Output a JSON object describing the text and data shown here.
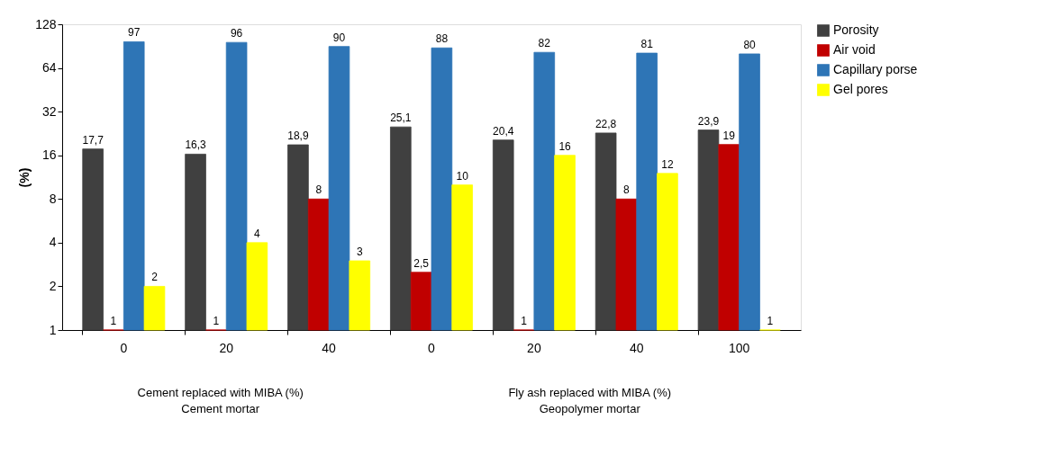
{
  "chart_data": {
    "type": "bar",
    "ylabel": "(%)",
    "categories": [
      "0",
      "20",
      "40",
      "0",
      "20",
      "40",
      "100"
    ],
    "series": [
      {
        "name": "Porosity",
        "color": "#404040",
        "values": [
          17.7,
          16.3,
          18.9,
          25.1,
          20.4,
          22.8,
          23.9
        ],
        "value_labels": [
          "17,7",
          "16,3",
          "18,9",
          "25,1",
          "20,4",
          "22,8",
          "23,9"
        ]
      },
      {
        "name": "Air void",
        "color": "#c00000",
        "values": [
          1,
          1,
          8,
          2.5,
          1,
          8,
          19
        ],
        "value_labels": [
          "1",
          "1",
          "8",
          "2,5",
          "1",
          "8",
          "19"
        ]
      },
      {
        "name": "Capillary porse",
        "color": "#2e75b6",
        "values": [
          97,
          96,
          90,
          88,
          82,
          81,
          80
        ],
        "value_labels": [
          "97",
          "96",
          "90",
          "88",
          "82",
          "81",
          "80"
        ]
      },
      {
        "name": "Gel pores",
        "color": "#ffff00",
        "values": [
          2,
          4,
          3,
          10,
          16,
          12,
          1
        ],
        "value_labels": [
          "2",
          "4",
          "3",
          "10",
          "16",
          "12",
          "1"
        ]
      }
    ],
    "ylim": [
      1,
      128
    ],
    "yticks": [
      1,
      2,
      4,
      8,
      16,
      32,
      64,
      128
    ],
    "log": "y",
    "grid": false,
    "legend": "right",
    "annotations": [
      "Cement replaced with MIBA (%)",
      "Cement mortar",
      "Fly ash replaced with MIBA (%)",
      "Geopolymer mortar"
    ]
  }
}
